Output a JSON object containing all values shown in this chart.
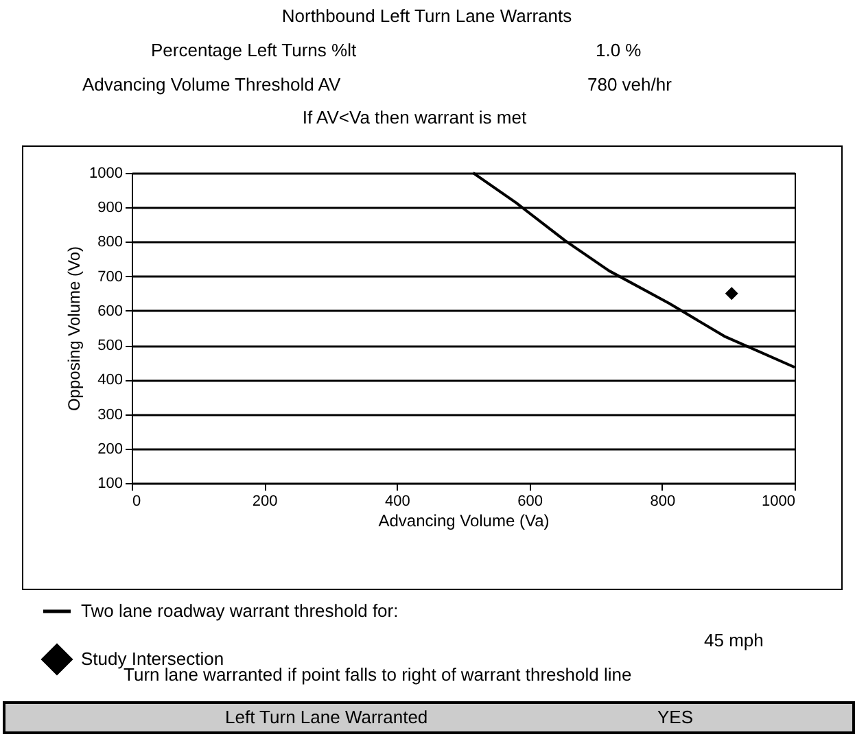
{
  "chart_data": {
    "type": "line",
    "title": "Northbound Left Turn Lane Warrants",
    "xlabel": "Advancing Volume (Va)",
    "ylabel": "Opposing Volume (Vo)",
    "annotations": [
      "Percentage Left Turns %lt",
      "1.0 %",
      "Advancing Volume Threshold AV",
      "780 veh/hr",
      "If AV<Va then warrant is met",
      "45 mph",
      "Turn lane warranted if point falls to right of warrant threshold line",
      "Left Turn Lane Warranted",
      "YES"
    ],
    "series": [
      {
        "name": "Two lane roadway warrant threshold for:",
        "type": "line",
        "color": "#000000",
        "x": [
          515,
          580,
          654,
          720,
          811,
          894,
          1000
        ],
        "values": [
          1000,
          913,
          803,
          716,
          621,
          526,
          436
        ]
      },
      {
        "name": "Study Intersection",
        "type": "scatter",
        "marker": "diamond",
        "color": "#000000",
        "x": [
          905
        ],
        "values": [
          650
        ]
      }
    ],
    "xlim": [
      0,
      1000
    ],
    "xticks": [
      0,
      200,
      400,
      600,
      800,
      1000
    ],
    "ylim": [
      100,
      1000
    ],
    "yticks": [
      100,
      200,
      300,
      400,
      500,
      600,
      700,
      800,
      900,
      1000
    ],
    "grid": "y",
    "legend": "bottom"
  }
}
